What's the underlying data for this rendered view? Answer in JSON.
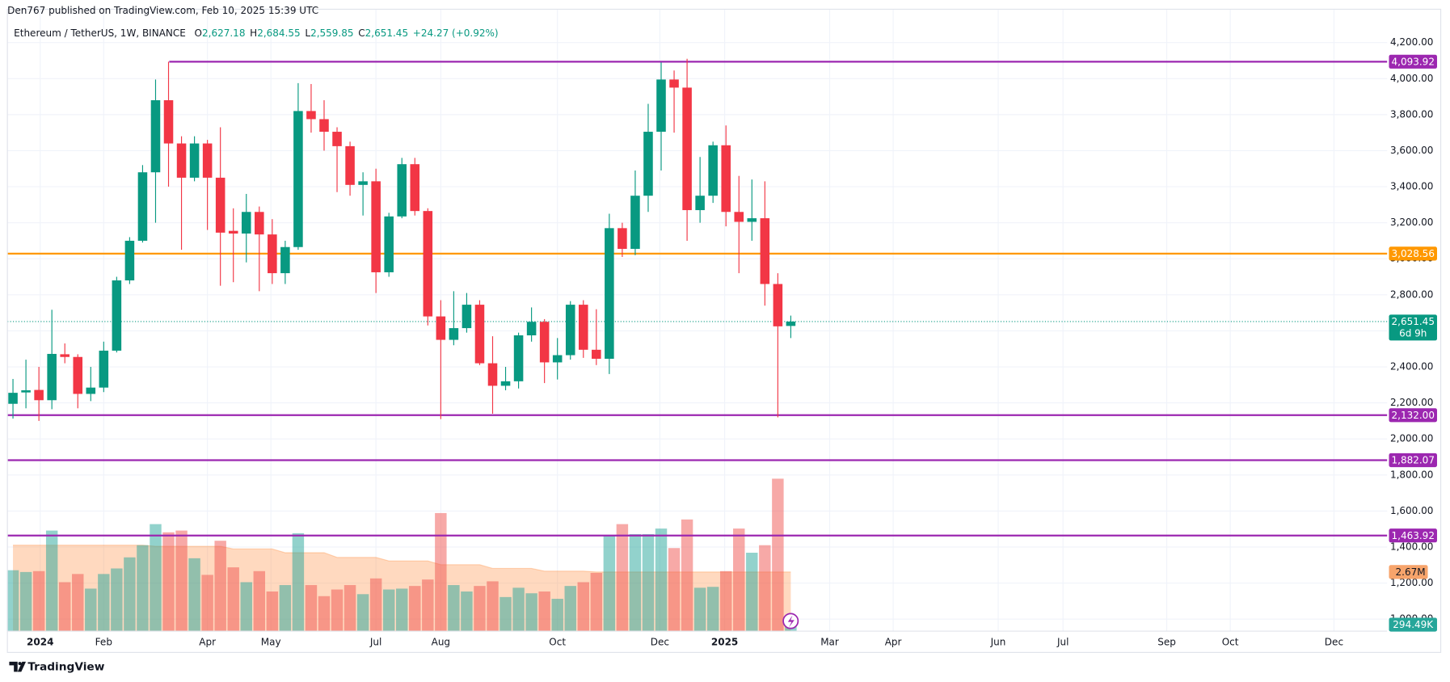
{
  "chart_data": {
    "type": "candlestick",
    "publisher": "Den767 published on TradingView.com, Feb 10, 2025 15:39 UTC",
    "symbol": "Ethereum / TetherUS, 1W, BINANCE",
    "ohlc_legend": [
      {
        "key": "O",
        "value": "2,627.18"
      },
      {
        "key": "H",
        "value": "2,684.55"
      },
      {
        "key": "L",
        "value": "2,559.85"
      },
      {
        "key": "C",
        "value": "2,651.45"
      }
    ],
    "change": "+24.27 (+0.92%)",
    "brand": "TradingView",
    "up_color": "#089981",
    "down_color": "#f23645",
    "open": [
      2195,
      2258,
      2272,
      2215,
      2470,
      2455,
      2250,
      2285,
      2490,
      2880,
      3100,
      3480,
      3880,
      3640,
      3450,
      3640,
      3450,
      3155,
      3140,
      3260,
      3135,
      2920,
      3065,
      3820,
      3775,
      3705,
      3625,
      3410,
      3430,
      2925,
      3235,
      3525,
      3265,
      2680,
      2550,
      2615,
      2745,
      2420,
      2295,
      2320,
      2575,
      2650,
      2425,
      2465,
      2745,
      2495,
      2445,
      3170,
      3055,
      3350,
      3705,
      3995,
      3950,
      3270,
      3350,
      3630,
      3260,
      3205,
      3225,
      2860,
      2627.18
    ],
    "high": [
      2333,
      2440,
      2400,
      2717,
      2530,
      2470,
      2400,
      2540,
      2900,
      3120,
      3520,
      3995,
      4094,
      3680,
      3680,
      3660,
      3730,
      3280,
      3360,
      3290,
      3220,
      3100,
      3975,
      3970,
      3880,
      3730,
      3650,
      3480,
      3500,
      3255,
      3560,
      3560,
      3280,
      2770,
      2820,
      2810,
      2770,
      2570,
      2400,
      2590,
      2730,
      2665,
      2560,
      2765,
      2770,
      2720,
      3250,
      3200,
      3490,
      3860,
      4090,
      4045,
      4110,
      3565,
      3650,
      3740,
      3460,
      3440,
      3430,
      2920,
      2684.55
    ],
    "low": [
      2113,
      2170,
      2100,
      2165,
      2420,
      2170,
      2210,
      2260,
      2480,
      2860,
      3090,
      3200,
      3400,
      3050,
      3430,
      3160,
      2850,
      2870,
      2980,
      2820,
      2860,
      2860,
      3050,
      3700,
      3600,
      3370,
      3350,
      3240,
      2810,
      2900,
      3225,
      3240,
      2630,
      2110,
      2520,
      2590,
      2410,
      2140,
      2270,
      2280,
      2540,
      2310,
      2330,
      2440,
      2450,
      2410,
      2360,
      3010,
      3020,
      3260,
      3490,
      3700,
      3100,
      3200,
      3310,
      3180,
      2920,
      3100,
      2740,
      2120,
      2559.85
    ],
    "close": [
      2256,
      2270,
      2215,
      2472,
      2455,
      2250,
      2285,
      2490,
      2880,
      3100,
      3480,
      3880,
      3640,
      3450,
      3640,
      3450,
      3145,
      3140,
      3260,
      3135,
      2920,
      3065,
      3820,
      3775,
      3705,
      3625,
      3410,
      3430,
      2925,
      3235,
      3525,
      3265,
      2680,
      2550,
      2615,
      2745,
      2420,
      2295,
      2320,
      2575,
      2650,
      2425,
      2465,
      2745,
      2495,
      2445,
      3170,
      3055,
      3350,
      3705,
      3995,
      3950,
      3270,
      3350,
      3630,
      3260,
      3205,
      3225,
      2860,
      2625,
      2651.45
    ],
    "volume": [
      2.75,
      2.67,
      2.71,
      4.54,
      2.21,
      2.58,
      1.92,
      2.58,
      2.83,
      3.33,
      3.88,
      4.83,
      4.46,
      4.54,
      3.29,
      2.54,
      4.08,
      2.88,
      2.21,
      2.71,
      1.79,
      2.08,
      4.42,
      2.08,
      1.58,
      1.88,
      2.08,
      1.67,
      2.38,
      1.88,
      1.92,
      2.04,
      2.33,
      5.33,
      2.08,
      1.79,
      2.04,
      2.25,
      1.54,
      1.96,
      1.71,
      1.79,
      1.46,
      2.04,
      2.21,
      2.63,
      4.29,
      4.83,
      4.38,
      4.38,
      4.63,
      3.75,
      5.04,
      1.96,
      2.0,
      2.71,
      4.63,
      3.54,
      3.88,
      6.88,
      0.29449
    ],
    "volume_ma": [
      3.88,
      3.88,
      3.88,
      3.88,
      3.88,
      3.88,
      3.88,
      3.88,
      3.88,
      3.88,
      3.88,
      3.83,
      3.83,
      3.83,
      3.83,
      3.83,
      3.83,
      3.71,
      3.71,
      3.71,
      3.71,
      3.54,
      3.54,
      3.54,
      3.54,
      3.33,
      3.33,
      3.33,
      3.33,
      3.17,
      3.17,
      3.17,
      3.17,
      3.0,
      3.0,
      3.0,
      3.0,
      2.83,
      2.83,
      2.83,
      2.83,
      2.71,
      2.71,
      2.71,
      2.71,
      2.67,
      2.67,
      2.67,
      2.67,
      2.67,
      2.67,
      2.67,
      2.67,
      2.67,
      2.67,
      2.67,
      2.67,
      2.67,
      2.67,
      2.67,
      2.67
    ],
    "volume_ma_label": {
      "value": 2.67,
      "label": "2.67M"
    },
    "volume_last_label": {
      "value": 0.29449,
      "label": "294.49K"
    },
    "current_price": {
      "value": 2651.45,
      "label": "2,651.45"
    },
    "countdown": "6d 9h",
    "levels": [
      {
        "value": 4093.92,
        "label": "4,093.92",
        "color": "#9c27b0"
      },
      {
        "value": 3028.56,
        "label": "3,028.56",
        "color": "#ff9800"
      },
      {
        "value": 2132.0,
        "label": "2,132.00",
        "color": "#9c27b0"
      },
      {
        "value": 1882.07,
        "label": "1,882.07",
        "color": "#9c27b0"
      },
      {
        "value": 1463.92,
        "label": "1,463.92",
        "color": "#9c27b0"
      }
    ],
    "xlim": [
      -0.43,
      106
    ],
    "xticks": [
      {
        "value": 2.1,
        "label": "2024"
      },
      {
        "value": 7.0,
        "label": "Feb"
      },
      {
        "value": 15.0,
        "label": "Apr"
      },
      {
        "value": 19.9,
        "label": "May"
      },
      {
        "value": 28.0,
        "label": "Jul"
      },
      {
        "value": 33.0,
        "label": "Aug"
      },
      {
        "value": 42.0,
        "label": "Oct"
      },
      {
        "value": 49.9,
        "label": "Dec"
      },
      {
        "value": 54.9,
        "label": "2025"
      },
      {
        "value": 63.0,
        "label": "Mar"
      },
      {
        "value": 67.9,
        "label": "Apr"
      },
      {
        "value": 76.0,
        "label": "Jun"
      },
      {
        "value": 81.0,
        "label": "Jul"
      },
      {
        "value": 89.0,
        "label": "Sep"
      },
      {
        "value": 93.9,
        "label": "Oct"
      },
      {
        "value": 101.9,
        "label": "Dec"
      }
    ],
    "ylim": [
      933,
      4385
    ],
    "yticks": [
      {
        "value": 1000,
        "label": "1,000.00"
      },
      {
        "value": 1200,
        "label": "1,200.00"
      },
      {
        "value": 1400,
        "label": "1,400.00"
      },
      {
        "value": 1600,
        "label": "1,600.00"
      },
      {
        "value": 1800,
        "label": "1,800.00"
      },
      {
        "value": 2000,
        "label": "2,000.00"
      },
      {
        "value": 2200,
        "label": "2,200.00"
      },
      {
        "value": 2400,
        "label": "2,400.00"
      },
      {
        "value": 2600,
        "label": "2,600.00"
      },
      {
        "value": 2800,
        "label": "2,800.00"
      },
      {
        "value": 3000,
        "label": "3,000.00"
      },
      {
        "value": 3200,
        "label": "3,200.00"
      },
      {
        "value": 3400,
        "label": "3,400.00"
      },
      {
        "value": 3600,
        "label": "3,600.00"
      },
      {
        "value": 3800,
        "label": "3,800.00"
      },
      {
        "value": 4000,
        "label": "4,000.00"
      },
      {
        "value": 4200,
        "label": "4,200.00"
      }
    ],
    "grid": true
  }
}
